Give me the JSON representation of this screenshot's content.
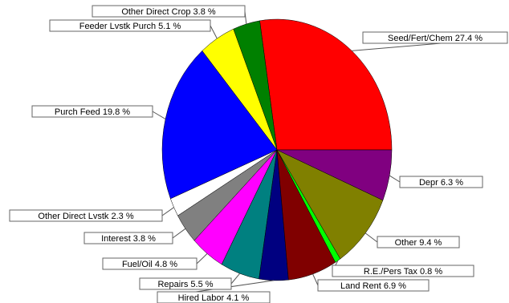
{
  "chart_data": {
    "type": "pie",
    "title": "",
    "start_angle_deg": 0,
    "direction": "counterclockwise",
    "slices": [
      {
        "label": "Seed/Fert/Chem 27.4 %",
        "name": "Seed/Fert/Chem",
        "value": 27.4,
        "color": "#ff0000"
      },
      {
        "label": "Other Direct Crop 3.8 %",
        "name": "Other Direct Crop",
        "value": 3.8,
        "color": "#008000"
      },
      {
        "label": "Feeder Lvstk Purch 5.1 %",
        "name": "Feeder Lvstk Purch",
        "value": 5.1,
        "color": "#ffff00"
      },
      {
        "label": "Purch Feed 19.8 %",
        "name": "Purch Feed",
        "value": 19.8,
        "color": "#0000ff"
      },
      {
        "label": "Other Direct Lvstk 2.3 %",
        "name": "Other Direct Lvstk",
        "value": 2.3,
        "color": "#ffffff"
      },
      {
        "label": "Interest 3.8 %",
        "name": "Interest",
        "value": 3.8,
        "color": "#808080"
      },
      {
        "label": "Fuel/Oil 4.8 %",
        "name": "Fuel/Oil",
        "value": 4.8,
        "color": "#ff00ff"
      },
      {
        "label": "Repairs 5.5 %",
        "name": "Repairs",
        "value": 5.5,
        "color": "#008080"
      },
      {
        "label": "Hired Labor 4.1 %",
        "name": "Hired Labor",
        "value": 4.1,
        "color": "#000080"
      },
      {
        "label": "Land Rent 6.9 %",
        "name": "Land Rent",
        "value": 6.9,
        "color": "#800000"
      },
      {
        "label": "R.E./Pers Tax 0.8 %",
        "name": "R.E./Pers Tax",
        "value": 0.8,
        "color": "#00ff00"
      },
      {
        "label": "Other 9.4 %",
        "name": "Other",
        "value": 9.4,
        "color": "#808000"
      },
      {
        "label": "Depr 6.3 %",
        "name": "Depr",
        "value": 6.3,
        "color": "#800080"
      }
    ]
  }
}
